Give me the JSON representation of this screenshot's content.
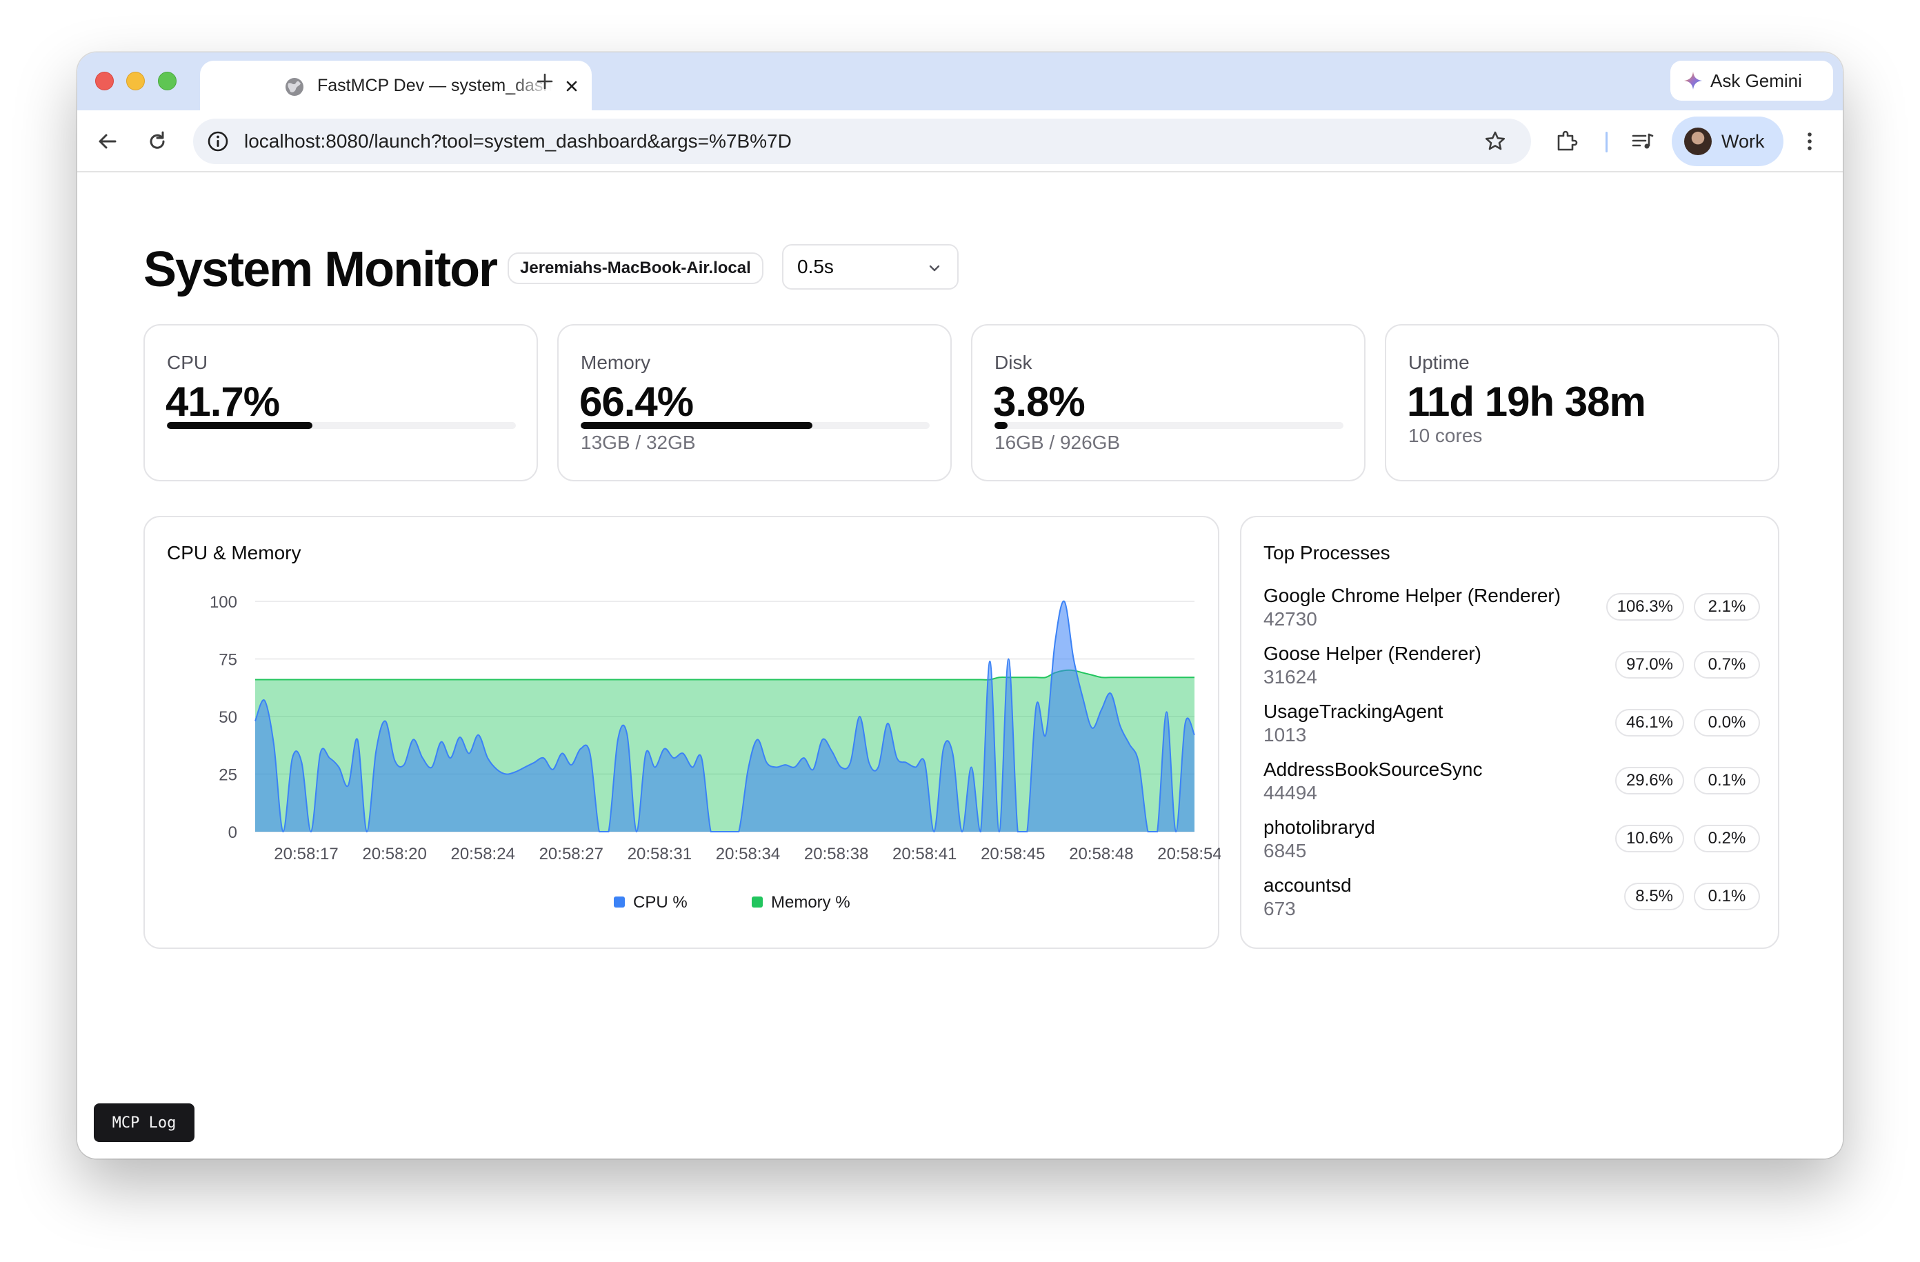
{
  "browser": {
    "tab_title": "FastMCP Dev — system_dashboard",
    "new_tab_symbol": "+",
    "url": "localhost:8080/launch?tool=system_dashboard&args=%7B%7D",
    "ask_gemini_label": "Ask Gemini",
    "profile_label": "Work"
  },
  "header": {
    "title": "System Monitor",
    "hostname": "Jeremiahs-MacBook-Air.local",
    "interval": "0.5s"
  },
  "stats": {
    "cpu": {
      "label": "CPU",
      "value": "41.7%",
      "fraction": 0.417
    },
    "memory": {
      "label": "Memory",
      "value": "66.4%",
      "fraction": 0.664,
      "detail": "13GB / 32GB"
    },
    "disk": {
      "label": "Disk",
      "value": "3.8%",
      "fraction": 0.038,
      "detail": "16GB / 926GB"
    },
    "uptime": {
      "label": "Uptime",
      "value": "11d 19h 38m",
      "detail": "10 cores"
    }
  },
  "chart_card": {
    "title": "CPU & Memory"
  },
  "chart_data": {
    "type": "area",
    "title": "CPU & Memory",
    "ylim": [
      0,
      100
    ],
    "yticks": [
      0,
      25,
      50,
      75,
      100
    ],
    "xticks": [
      "20:58:17",
      "20:58:20",
      "20:58:24",
      "20:58:27",
      "20:58:31",
      "20:58:34",
      "20:58:38",
      "20:58:41",
      "20:58:45",
      "20:58:48",
      "20:58:54"
    ],
    "grid": true,
    "legend_position": "bottom",
    "series": [
      {
        "name": "CPU %",
        "color": "#3b82f6",
        "values": [
          48,
          57,
          38,
          0,
          32,
          30,
          0,
          34,
          32,
          28,
          20,
          40,
          0,
          35,
          48,
          31,
          29,
          40,
          32,
          28,
          39,
          32,
          41,
          34,
          42,
          32,
          27,
          25,
          26,
          28,
          30,
          32,
          27,
          34,
          29,
          36,
          34,
          0,
          0,
          40,
          42,
          0,
          34,
          28,
          36,
          32,
          34,
          28,
          32,
          0,
          0,
          0,
          0,
          27,
          40,
          30,
          28,
          29,
          28,
          32,
          27,
          40,
          35,
          28,
          30,
          50,
          30,
          28,
          47,
          32,
          30,
          28,
          30,
          0,
          36,
          34,
          0,
          28,
          0,
          74,
          0,
          75,
          0,
          0,
          55,
          42,
          82,
          100,
          75,
          58,
          45,
          53,
          60,
          46,
          38,
          30,
          0,
          0,
          52,
          0,
          47,
          42
        ]
      },
      {
        "name": "Memory %",
        "color": "#22c55e",
        "values": [
          66,
          66,
          66,
          66,
          66,
          66,
          66,
          66,
          66,
          66,
          66,
          66,
          66,
          66,
          66,
          66,
          66,
          66,
          66,
          66,
          66,
          66,
          66,
          66,
          66,
          66,
          66,
          66,
          66,
          66,
          66,
          66,
          66,
          66,
          66,
          66,
          66,
          66,
          66,
          66,
          66,
          66,
          66,
          66,
          66,
          66,
          66,
          66,
          66,
          66,
          66,
          66,
          66,
          66,
          66,
          66,
          66,
          66,
          66,
          66,
          66,
          66,
          66,
          66,
          66,
          66,
          66,
          66,
          66,
          66,
          66,
          66,
          66,
          66,
          66,
          66,
          66,
          66,
          66,
          66,
          67,
          67,
          67,
          67,
          67,
          67,
          69,
          70,
          70,
          69,
          68,
          67,
          67,
          67,
          67,
          67,
          67,
          67,
          67,
          67,
          67,
          67
        ]
      }
    ]
  },
  "processes": {
    "title": "Top Processes",
    "items": [
      {
        "name": "Google Chrome Helper (Renderer)",
        "pid": "42730",
        "cpu": "106.3%",
        "mem": "2.1%"
      },
      {
        "name": "Goose Helper (Renderer)",
        "pid": "31624",
        "cpu": "97.0%",
        "mem": "0.7%"
      },
      {
        "name": "UsageTrackingAgent",
        "pid": "1013",
        "cpu": "46.1%",
        "mem": "0.0%"
      },
      {
        "name": "AddressBookSourceSync",
        "pid": "44494",
        "cpu": "29.6%",
        "mem": "0.1%"
      },
      {
        "name": "photolibraryd",
        "pid": "6845",
        "cpu": "10.6%",
        "mem": "0.2%"
      },
      {
        "name": "accountsd",
        "pid": "673",
        "cpu": "8.5%",
        "mem": "0.1%"
      }
    ]
  },
  "mcp_log": {
    "label": "MCP Log"
  }
}
